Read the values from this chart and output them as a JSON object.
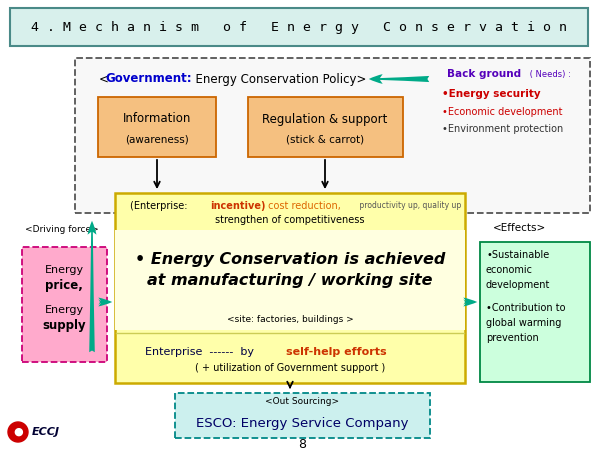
{
  "title": "4 . M e c h a n i s m   o f   E n e r g y   C o n s e r v a t i o n",
  "bg_color": "#ffffff",
  "title_bg": "#d8f0ec",
  "title_border": "#4a8a88",
  "govt_text_blue": "<Government:",
  "govt_text_black": "  Energy Conservation Policy>",
  "info_text1": "Information",
  "info_text2": "(awareness)",
  "reg_text1": "Regulation & support",
  "reg_text2": "(stick & carrot)",
  "bg_title": "Back ground",
  "bg_needs": "( Needs) :",
  "bg_item1": "•Energy security",
  "bg_item2": "•Economic development",
  "bg_item3": "•Environment protection",
  "driving_label": "<Driving force>",
  "energy_line1": "Energy",
  "energy_line2": "price,",
  "energy_line3": "Energy",
  "energy_line4": "supply",
  "ent_black1": "(Enterprise: ",
  "ent_red": "incentive)",
  "ent_orange": " cost reduction,",
  "ent_small": " productivity up, quality up",
  "ent_black2": "strengthen of competitiveness",
  "main_line1": "• Energy Conservation is achieved",
  "main_line2": "at manufacturing / working site",
  "site_text": "<site: factories, buildings >",
  "ent_footer1": "Enterprise  ------  by ",
  "ent_footer_red": "self-help efforts",
  "ent_footer2": "( + utilization of Government support )",
  "effects_label": "<Effects>",
  "eff_text": "•Sustainable\neconomic\ndevelopment\n•Contribution to\nglobal warming\nprevention",
  "esco_top": "<Out Sourcing>",
  "esco_bot": "ESCO: Energy Service Company",
  "esco_bot_E": "E",
  "esco_bot_rest": "SCO: ",
  "esco_bot_En": "E",
  "esco_bot_nergy": "nergy ",
  "esco_bot_S": "S",
  "esco_bot_ervice": "ervice ",
  "esco_bot_C": "C",
  "esco_bot_ompany": "ompany",
  "page_num": "8",
  "eccj_text": "ECCJ",
  "green": "#00aa88",
  "orange_fill": "#f5c080",
  "orange_edge": "#cc6600",
  "pink_fill": "#ffaacc",
  "pink_edge": "#cc0077",
  "yellow_fill": "#ffffaa",
  "yellow_edge": "#ccaa00",
  "cyan_fill": "#ccf0ee",
  "cyan_edge": "#008888",
  "ltgreen_fill": "#ccffdd",
  "ltgreen_edge": "#008844",
  "eccj_red": "#cc0000"
}
